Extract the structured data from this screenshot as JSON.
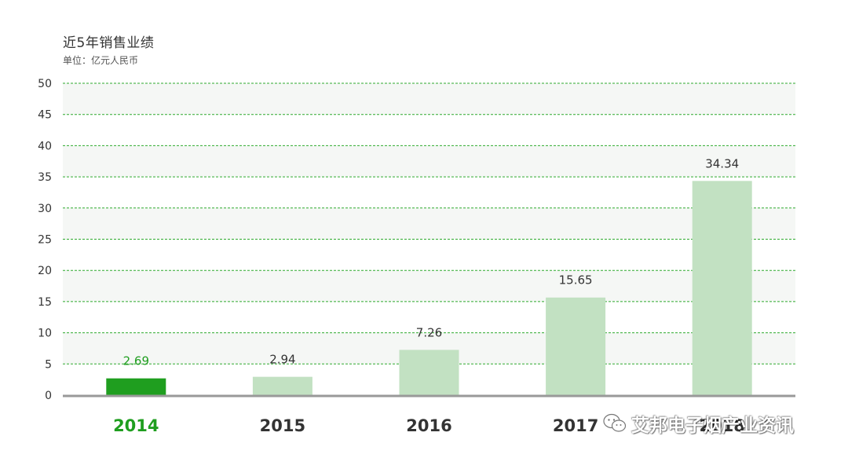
{
  "chart_data": {
    "type": "bar",
    "title": "近5年销售业绩",
    "subtitle": "单位：亿元人民币",
    "categories": [
      "2014",
      "2015",
      "2016",
      "2017",
      "2018"
    ],
    "values": [
      2.69,
      2.94,
      7.26,
      15.65,
      34.34
    ],
    "value_labels": [
      "2.69",
      "2.94",
      "7.26",
      "15.65",
      "34.34"
    ],
    "ylim": [
      0,
      50
    ],
    "yticks": [
      0,
      5,
      10,
      15,
      20,
      25,
      30,
      35,
      40,
      45,
      50
    ],
    "grid": true,
    "grid_style": "dashed",
    "highlight_index": 0,
    "colors": {
      "bar": "#c2e1c2",
      "bar_highlight": "#1f9e1f",
      "label_highlight": "#1f9e1f",
      "label": "#333333",
      "grid": "#2eaa2e",
      "band": "#f5f7f5",
      "axis": "#999999"
    }
  },
  "watermark": {
    "icon": "wechat-icon",
    "text": "艾邦电子烟产业资讯"
  }
}
